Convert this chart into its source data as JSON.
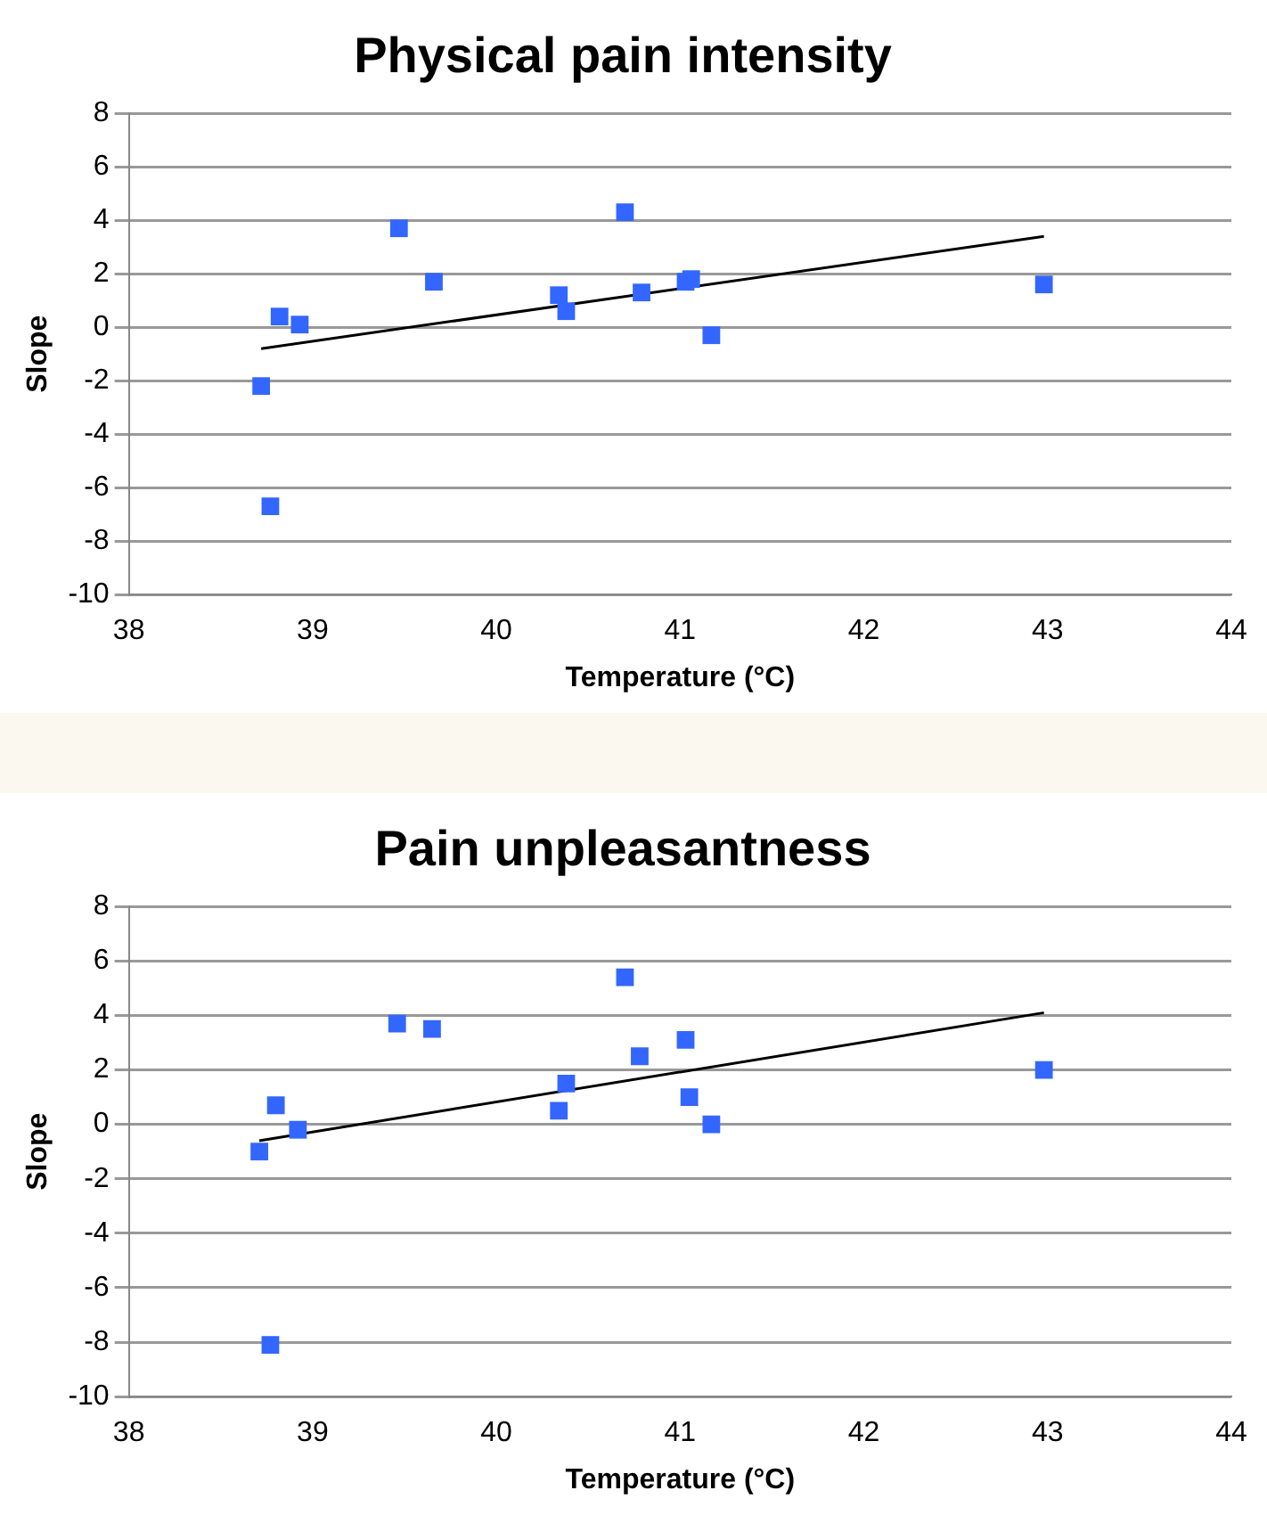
{
  "chart_data": [
    {
      "type": "scatter",
      "title": "Physical pain intensity",
      "xlabel": "Temperature (°C)",
      "ylabel": "Slope",
      "xlim": [
        38,
        44
      ],
      "xticks": [
        38,
        39,
        40,
        41,
        42,
        43,
        44
      ],
      "ylim": [
        -10,
        8
      ],
      "yticks": [
        -10,
        -8,
        -6,
        -4,
        -2,
        0,
        2,
        4,
        6,
        8
      ],
      "grid": "y",
      "legend": false,
      "marker": "square",
      "series": [
        {
          "type": "scatter",
          "color": "#3366ff",
          "x": [
            38.72,
            38.77,
            38.82,
            38.93,
            39.47,
            39.66,
            40.34,
            40.38,
            40.7,
            40.79,
            41.03,
            41.06,
            41.17,
            42.98
          ],
          "values": [
            -2.2,
            -6.7,
            0.4,
            0.1,
            3.7,
            1.7,
            1.2,
            0.6,
            4.3,
            1.3,
            1.7,
            1.8,
            -0.3,
            1.6
          ]
        },
        {
          "type": "line",
          "color": "#000000",
          "marker": "none",
          "x": [
            38.72,
            42.98
          ],
          "values": [
            -0.8,
            3.4
          ]
        }
      ]
    },
    {
      "type": "scatter",
      "title": "Pain unpleasantness",
      "xlabel": "Temperature (°C)",
      "ylabel": "Slope",
      "xlim": [
        38,
        44
      ],
      "xticks": [
        38,
        39,
        40,
        41,
        42,
        43,
        44
      ],
      "ylim": [
        -10,
        8
      ],
      "yticks": [
        -10,
        -8,
        -6,
        -4,
        -2,
        0,
        2,
        4,
        6,
        8
      ],
      "grid": "y",
      "legend": false,
      "marker": "square",
      "series": [
        {
          "type": "scatter",
          "color": "#3366ff",
          "x": [
            38.71,
            38.77,
            38.8,
            38.92,
            39.46,
            39.65,
            40.34,
            40.38,
            40.7,
            40.78,
            41.03,
            41.05,
            41.17,
            42.98
          ],
          "values": [
            -1.0,
            -8.1,
            0.7,
            -0.2,
            3.7,
            3.5,
            0.5,
            1.5,
            5.4,
            2.5,
            3.1,
            1.0,
            0.0,
            2.0
          ]
        },
        {
          "type": "line",
          "color": "#000000",
          "marker": "none",
          "x": [
            38.71,
            42.98
          ],
          "values": [
            -0.6,
            4.1
          ]
        }
      ]
    }
  ]
}
